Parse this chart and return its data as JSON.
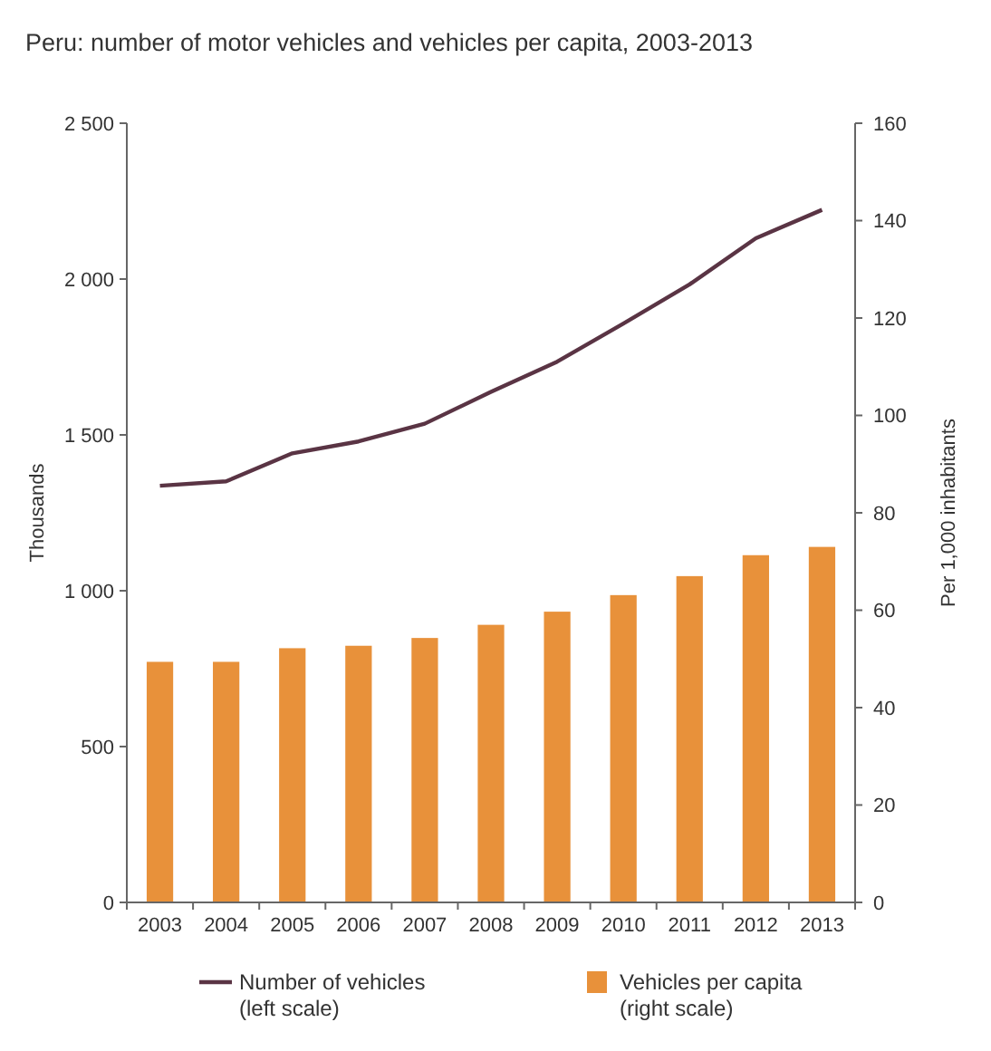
{
  "chart_data": {
    "type": "bar",
    "title": "Peru: number of motor vehicles and vehicles per capita, 2003-2013",
    "ylabel": "Thousands",
    "y2label": "Per 1,000 inhabitants",
    "categories": [
      "2003",
      "2004",
      "2005",
      "2006",
      "2007",
      "2008",
      "2009",
      "2010",
      "2011",
      "2012",
      "2013"
    ],
    "series": [
      {
        "name": "Number of vehicles\n(left scale)",
        "type": "line",
        "color": "#5a3444",
        "values": [
          1337,
          1351,
          1441,
          1479,
          1536,
          1638,
          1735,
          1857,
          1983,
          2131,
          2222
        ]
      },
      {
        "name": "Vehicles per capita\n(right scale)",
        "axis": "y2",
        "color": "#e8913a",
        "values": [
          49.4,
          49.4,
          52.2,
          52.7,
          54.3,
          57.0,
          59.7,
          63.1,
          67.0,
          71.3,
          73.0
        ]
      }
    ],
    "ylim": [
      0,
      2500
    ],
    "yticks": [
      0,
      500,
      {
        "value": 1000,
        "label": "1 000"
      },
      {
        "value": 1500,
        "label": "1 500"
      },
      {
        "value": 2000,
        "label": "2 000"
      },
      {
        "value": 2500,
        "label": "2 500"
      }
    ],
    "y2lim": [
      0,
      160
    ],
    "y2ticks": [
      0,
      20,
      40,
      60,
      80,
      100,
      120,
      140,
      160
    ],
    "grid": false,
    "legend": "bottom",
    "marker": "none",
    "line_style": "solid"
  }
}
